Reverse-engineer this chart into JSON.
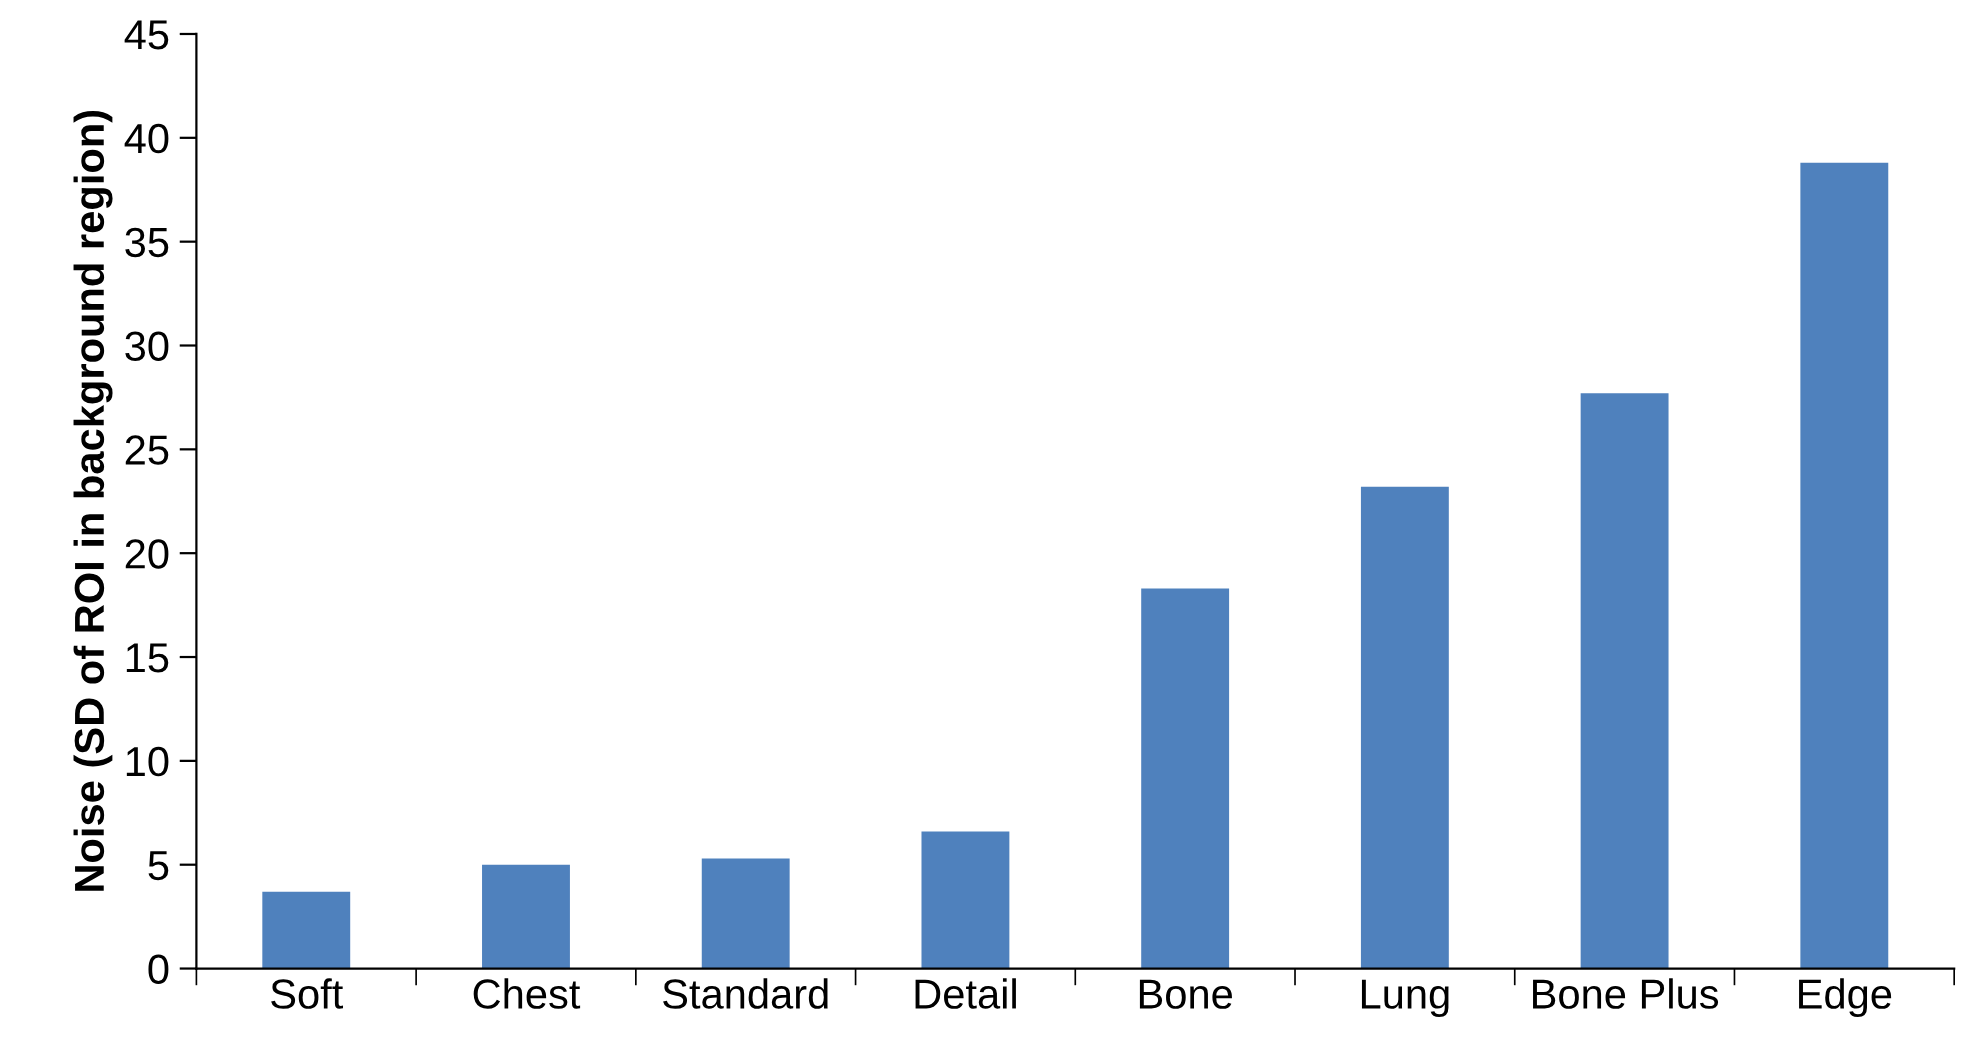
{
  "chart_data": {
    "type": "bar",
    "ylabel": "Noise (SD of ROI in background region)",
    "categories": [
      "Soft",
      "Chest",
      "Standard",
      "Detail",
      "Bone",
      "Lung",
      "Bone Plus",
      "Edge"
    ],
    "values": [
      3.7,
      5.0,
      5.3,
      6.6,
      18.3,
      23.2,
      27.7,
      38.8
    ],
    "color": "#4f81bd",
    "ylim": [
      0,
      45
    ],
    "yticks": [
      0,
      5,
      10,
      15,
      20,
      25,
      30,
      35,
      40,
      45
    ],
    "grid": false,
    "legend": false
  }
}
